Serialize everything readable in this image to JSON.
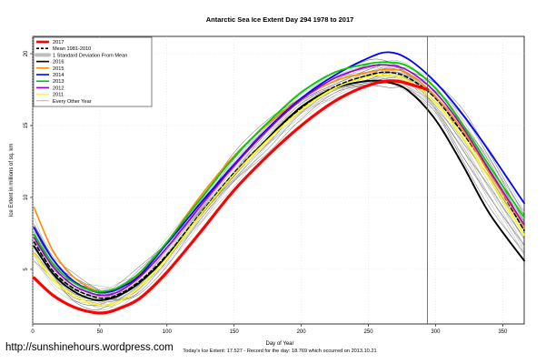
{
  "watermark": "http://sunshinehours.wordpress.com",
  "footer": "Today's Ice Extent: 17.527  -  Record for the day: 18.769 which occurred on 2013.10.21",
  "chart_data": {
    "type": "line",
    "title": "Antarctic Sea Ice Extent Day 294 1978 to 2017",
    "xlabel": "Day of Year",
    "ylabel": "Ice Extent in millions of sq. km",
    "xlim": [
      0,
      366
    ],
    "ylim": [
      1.2,
      21.2
    ],
    "x_ticks": [
      0,
      50,
      100,
      150,
      200,
      250,
      300,
      350
    ],
    "y_ticks": [
      5,
      10,
      15,
      20
    ],
    "grid": true,
    "current_day": 294,
    "legend_position": "top-left",
    "legend": [
      {
        "label": "2017",
        "color": "#ff0000",
        "style": "thick"
      },
      {
        "label": "Mean 1981-2010",
        "color": "#000000",
        "style": "dashed"
      },
      {
        "label": "1 Standard Deviation From Mean",
        "color": "#bdbdbd",
        "style": "band"
      },
      {
        "label": "2016",
        "color": "#000000",
        "style": "solid"
      },
      {
        "label": "2015",
        "color": "#ff8c00",
        "style": "solid"
      },
      {
        "label": "2014",
        "color": "#0000ff",
        "style": "solid"
      },
      {
        "label": "2013",
        "color": "#00cc00",
        "style": "solid"
      },
      {
        "label": "2012",
        "color": "#9900cc",
        "style": "solid"
      },
      {
        "label": "2011",
        "color": "#ffff00",
        "style": "solid"
      },
      {
        "label": "Every Other Year",
        "color": "#808080",
        "style": "thin"
      }
    ],
    "series": [
      {
        "name": "2017",
        "color": "#ff0000",
        "width": 3.2,
        "x": [
          1,
          15,
          30,
          45,
          55,
          65,
          80,
          100,
          125,
          150,
          175,
          200,
          225,
          250,
          270,
          294
        ],
        "y": [
          4.4,
          3.2,
          2.4,
          2.0,
          2.0,
          2.3,
          3.0,
          4.8,
          7.6,
          10.5,
          12.9,
          15.0,
          16.7,
          17.8,
          18.1,
          17.5
        ]
      },
      {
        "name": "Mean 1981-2010",
        "color": "#000000",
        "width": 1.6,
        "dash": "4,3",
        "x": [
          1,
          15,
          30,
          45,
          55,
          65,
          80,
          100,
          125,
          150,
          175,
          200,
          225,
          250,
          265,
          280,
          300,
          320,
          340,
          366
        ],
        "y": [
          6.9,
          4.9,
          3.7,
          3.1,
          3.0,
          3.3,
          4.2,
          6.0,
          8.9,
          11.7,
          14.1,
          16.2,
          17.7,
          18.5,
          18.7,
          18.3,
          16.9,
          14.5,
          11.8,
          7.7
        ]
      },
      {
        "name": "2016",
        "color": "#000000",
        "width": 1.9,
        "x": [
          1,
          15,
          30,
          45,
          55,
          65,
          80,
          100,
          125,
          150,
          175,
          200,
          225,
          250,
          265,
          280,
          300,
          320,
          340,
          366
        ],
        "y": [
          6.6,
          4.7,
          3.5,
          2.9,
          2.9,
          3.2,
          4.1,
          5.9,
          8.8,
          11.6,
          14.1,
          16.3,
          17.6,
          18.1,
          18.0,
          17.4,
          15.4,
          12.3,
          8.9,
          5.6
        ]
      },
      {
        "name": "2015",
        "color": "#ff8c00",
        "width": 1.6,
        "x": [
          1,
          15,
          30,
          45,
          55,
          65,
          80,
          100,
          125,
          150,
          175,
          200,
          225,
          250,
          265,
          280,
          300,
          320,
          340,
          366
        ],
        "y": [
          9.3,
          6.3,
          4.5,
          3.6,
          3.4,
          3.7,
          4.7,
          6.9,
          10.1,
          12.9,
          15.1,
          16.9,
          18.1,
          18.7,
          18.9,
          18.6,
          17.0,
          14.7,
          11.7,
          8.0
        ]
      },
      {
        "name": "2014",
        "color": "#0000ff",
        "width": 1.8,
        "x": [
          1,
          15,
          30,
          45,
          55,
          65,
          80,
          100,
          125,
          150,
          175,
          200,
          225,
          250,
          265,
          280,
          300,
          320,
          340,
          366
        ],
        "y": [
          7.9,
          5.7,
          4.2,
          3.5,
          3.4,
          3.7,
          4.6,
          6.8,
          9.6,
          12.3,
          14.8,
          16.9,
          18.5,
          19.7,
          20.1,
          19.6,
          18.0,
          15.8,
          13.2,
          9.6
        ]
      },
      {
        "name": "2013",
        "color": "#00cc00",
        "width": 1.8,
        "x": [
          1,
          15,
          30,
          45,
          55,
          65,
          80,
          100,
          125,
          150,
          175,
          200,
          225,
          250,
          265,
          280,
          300,
          320,
          340,
          366
        ],
        "y": [
          7.4,
          5.4,
          4.1,
          3.5,
          3.5,
          3.8,
          4.8,
          6.9,
          9.9,
          12.8,
          15.2,
          17.3,
          18.7,
          19.3,
          19.4,
          19.1,
          17.6,
          15.1,
          12.2,
          8.6
        ]
      },
      {
        "name": "2012",
        "color": "#9900cc",
        "width": 1.6,
        "x": [
          1,
          15,
          30,
          45,
          55,
          65,
          80,
          100,
          125,
          150,
          175,
          200,
          225,
          250,
          265,
          280,
          300,
          320,
          340,
          366
        ],
        "y": [
          7.2,
          5.2,
          3.9,
          3.3,
          3.2,
          3.5,
          4.5,
          6.5,
          9.4,
          12.2,
          14.7,
          16.8,
          18.3,
          19.1,
          19.2,
          18.8,
          17.3,
          14.9,
          11.9,
          8.1
        ]
      },
      {
        "name": "2011",
        "color": "#ffff00",
        "width": 1.6,
        "x": [
          1,
          15,
          30,
          45,
          55,
          65,
          80,
          100,
          125,
          150,
          175,
          200,
          225,
          250,
          265,
          280,
          300,
          320,
          340,
          366
        ],
        "y": [
          6.1,
          4.3,
          3.2,
          2.6,
          2.5,
          2.8,
          3.8,
          5.8,
          8.8,
          11.6,
          14.0,
          16.1,
          17.6,
          18.4,
          18.5,
          18.1,
          16.6,
          14.2,
          11.3,
          7.4
        ]
      }
    ],
    "background_band": {
      "name": "Every Other Year",
      "color": "#808080",
      "x": [
        1,
        15,
        30,
        45,
        55,
        65,
        80,
        100,
        125,
        150,
        175,
        200,
        225,
        250,
        265,
        280,
        300,
        320,
        340,
        366
      ],
      "low": [
        5.6,
        4.0,
        2.9,
        2.4,
        2.3,
        2.6,
        3.5,
        5.4,
        8.2,
        11.0,
        13.4,
        15.5,
        17.0,
        17.8,
        17.9,
        17.4,
        15.6,
        12.8,
        9.6,
        5.9
      ],
      "high": [
        8.4,
        6.0,
        4.5,
        3.8,
        3.7,
        4.0,
        5.0,
        7.0,
        10.0,
        12.9,
        15.2,
        17.2,
        18.6,
        19.3,
        19.4,
        19.1,
        17.9,
        15.8,
        13.2,
        9.1
      ]
    }
  }
}
